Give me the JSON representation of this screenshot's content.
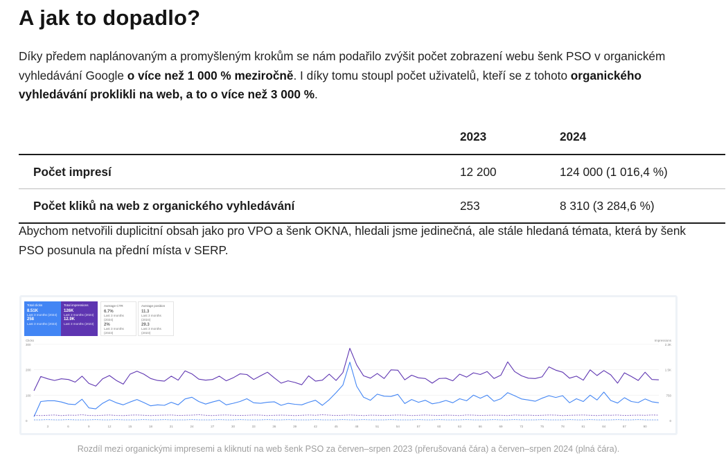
{
  "heading": "A jak to dopadlo?",
  "intro": {
    "t1": "Díky předem naplánovaným a promyšleným krokům se nám podařilo zvýšit počet zobrazení webu šenk PSO v organickém vyhledávání Google ",
    "b1": "o více než 1 000 % meziročně",
    "t2": ". I díky tomu stoupl počet uživatelů, kteří se z tohoto ",
    "b2": "organického vyhledávání proklikli na web, a to o více než 3 000 %",
    "t3": "."
  },
  "table": {
    "headers": [
      "",
      "2023",
      "2024"
    ],
    "rows": [
      {
        "label": "Počet impresí",
        "y2023": "12 200",
        "y2024": "124 000 (1 016,4 %)"
      },
      {
        "label": "Počet kliků na web z organického vyhledávání",
        "y2023": "253",
        "y2024": "8 310 (3 284,6 %)"
      }
    ]
  },
  "paragraph2": "Abychom netvořili duplicitní obsah jako pro VPO a šenk OKNA, hledali jsme jedinečná, ale stále hledaná témata, která by šenk PSO posunula na přední místa v SERP.",
  "screenshot": {
    "cards": [
      {
        "label": "Total clicks",
        "value": "8.51K",
        "sub1": "Last 3 months (2024)",
        "value2": "258",
        "sub2": "Last 3 months (2023)"
      },
      {
        "label": "Total impressions",
        "value": "126K",
        "sub1": "Last 3 months (2024)",
        "value2": "12.9K",
        "sub2": "Last 3 months (2023)"
      },
      {
        "label": "Average CTR",
        "value": "6.7%",
        "sub1": "Last 3 months (2024)",
        "value2": "2%",
        "sub2": "Last 3 months (2023)"
      },
      {
        "label": "Average position",
        "value": "11.3",
        "sub1": "Last 3 months (2024)",
        "value2": "29.3",
        "sub2": "Last 3 months (2023)"
      }
    ],
    "colors": {
      "clicks": "#4285f4",
      "impressions": "#5e35b1"
    },
    "left_axis_title": "Clicks",
    "right_axis_title": "Impressions",
    "left_ticks": [
      "300",
      "200",
      "100",
      "0"
    ],
    "right_ticks": [
      "2.3K",
      "1.5K",
      "750",
      "0"
    ],
    "x_ticks": [
      "3",
      "6",
      "9",
      "12",
      "15",
      "18",
      "21",
      "24",
      "27",
      "30",
      "33",
      "36",
      "39",
      "42",
      "45",
      "48",
      "51",
      "54",
      "57",
      "60",
      "63",
      "66",
      "69",
      "72",
      "75",
      "78",
      "81",
      "84",
      "87",
      "90"
    ]
  },
  "chart_data": {
    "type": "line",
    "x": [
      1,
      2,
      3,
      4,
      5,
      6,
      7,
      8,
      9,
      10,
      11,
      12,
      13,
      14,
      15,
      16,
      17,
      18,
      19,
      20,
      21,
      22,
      23,
      24,
      25,
      26,
      27,
      28,
      29,
      30,
      31,
      32,
      33,
      34,
      35,
      36,
      37,
      38,
      39,
      40,
      41,
      42,
      43,
      44,
      45,
      46,
      47,
      48,
      49,
      50,
      51,
      52,
      53,
      54,
      55,
      56,
      57,
      58,
      59,
      60,
      61,
      62,
      63,
      64,
      65,
      66,
      67,
      68,
      69,
      70,
      71,
      72,
      73,
      74,
      75,
      76,
      77,
      78,
      79,
      80,
      81,
      82,
      83,
      84,
      85,
      86,
      87,
      88,
      89,
      90,
      91,
      92
    ],
    "series": [
      {
        "name": "Total impressions",
        "axis": "right",
        "values": [
          900,
          1330,
          1260,
          1210,
          1260,
          1240,
          1160,
          1340,
          1120,
          1040,
          1260,
          1360,
          1210,
          1100,
          1400,
          1490,
          1400,
          1270,
          1210,
          1190,
          1340,
          1220,
          1500,
          1410,
          1250,
          1220,
          1240,
          1340,
          1200,
          1290,
          1410,
          1390,
          1240,
          1350,
          1460,
          1290,
          1130,
          1200,
          1150,
          1080,
          1350,
          1190,
          1220,
          1400,
          1210,
          1450,
          2180,
          1680,
          1350,
          1280,
          1420,
          1270,
          1530,
          1520,
          1230,
          1370,
          1290,
          1270,
          1130,
          1270,
          1280,
          1200,
          1400,
          1310,
          1440,
          1390,
          1480,
          1270,
          1370,
          1770,
          1480,
          1350,
          1280,
          1270,
          1320,
          1620,
          1520,
          1460,
          1280,
          1340,
          1220,
          1530,
          1360,
          1510,
          1380,
          1130,
          1440,
          1330,
          1210,
          1460,
          1240,
          1230
        ]
      },
      {
        "name": "Total clicks",
        "axis": "left",
        "values": [
          15,
          75,
          78,
          78,
          73,
          65,
          63,
          84,
          50,
          46,
          68,
          82,
          70,
          62,
          73,
          83,
          71,
          58,
          62,
          60,
          72,
          62,
          85,
          92,
          75,
          65,
          73,
          80,
          62,
          68,
          75,
          86,
          70,
          68,
          72,
          74,
          60,
          68,
          64,
          62,
          72,
          80,
          60,
          82,
          110,
          140,
          230,
          135,
          92,
          80,
          104,
          96,
          95,
          103,
          67,
          83,
          72,
          80,
          66,
          71,
          79,
          70,
          86,
          78,
          100,
          88,
          100,
          76,
          86,
          110,
          98,
          85,
          81,
          76,
          88,
          98,
          91,
          98,
          70,
          86,
          75,
          100,
          81,
          112,
          79,
          69,
          90,
          75,
          71,
          85,
          74,
          70
        ]
      },
      {
        "name": "Impressions (2023)",
        "axis": "right",
        "style": "dashed",
        "values": [
          160,
          150,
          160,
          170,
          150,
          165,
          160,
          175,
          155,
          150,
          160,
          170,
          155,
          150,
          165,
          170,
          160,
          150,
          160,
          165,
          170,
          155,
          160,
          165,
          175,
          160,
          150,
          165,
          170,
          160,
          155,
          160,
          170,
          165,
          150,
          160,
          165,
          160,
          150,
          160,
          170,
          160,
          175,
          165,
          155,
          160,
          170,
          160,
          150,
          165,
          160,
          155,
          160,
          170,
          165,
          150,
          160,
          170,
          160,
          155,
          165,
          160,
          150,
          170,
          165,
          155,
          160,
          165,
          160,
          150,
          170,
          160,
          165,
          155,
          160,
          170,
          165,
          150,
          160,
          165,
          170,
          160,
          150,
          165,
          160,
          170,
          155,
          160,
          165,
          160,
          170,
          165
        ]
      },
      {
        "name": "Clicks (2023)",
        "axis": "left",
        "style": "dashed",
        "values": [
          3,
          3,
          4,
          3,
          3,
          4,
          3,
          3,
          3,
          4,
          3,
          3,
          4,
          3,
          3,
          3,
          4,
          3,
          3,
          4,
          3,
          3,
          3,
          4,
          3,
          3,
          3,
          4,
          3,
          3,
          4,
          3,
          3,
          3,
          4,
          3,
          3,
          4,
          3,
          3,
          3,
          4,
          3,
          3,
          3,
          4,
          3,
          3,
          4,
          3,
          3,
          3,
          4,
          3,
          3,
          3,
          4,
          3,
          3,
          4,
          3,
          3,
          3,
          4,
          3,
          3,
          3,
          4,
          3,
          3,
          4,
          3,
          3,
          3,
          4,
          3,
          3,
          3,
          4,
          3,
          3,
          4,
          3,
          3,
          3,
          4,
          3,
          3,
          4,
          3,
          3,
          3
        ]
      }
    ],
    "left_ylim": [
      0,
      300
    ],
    "right_ylim": [
      0,
      2300
    ]
  },
  "caption": "Rozdíl mezi organickými impresemi a kliknutí na web šenk PSO za červen–srpen 2023 (přerušovaná čára) a červen–srpen 2024 (plná čára)."
}
